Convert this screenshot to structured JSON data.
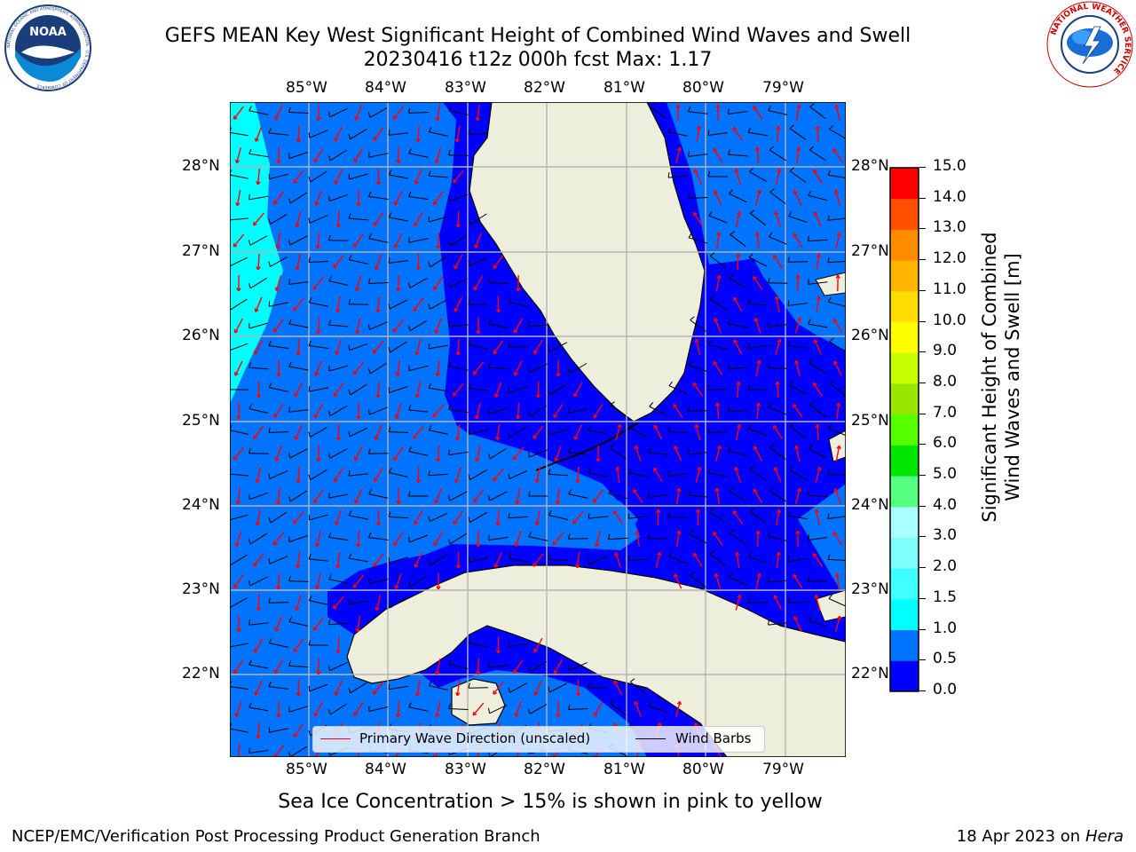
{
  "title": {
    "line1": "GEFS MEAN Key West Significant Height of Combined Wind Waves and Swell",
    "line2": "20230416 t12z 000h fcst   Max: 1.17"
  },
  "logos": {
    "noaa_text": "NOAA",
    "noaa_ring": "NATIONAL OCEANIC AND ATMOSPHERIC ADMINISTRATION · U.S. DEPARTMENT OF COMMERCE",
    "nws_ring": "NATIONAL WEATHER SERVICE"
  },
  "axes": {
    "lon_ticks": [
      "85°W",
      "84°W",
      "83°W",
      "82°W",
      "81°W",
      "80°W",
      "79°W"
    ],
    "lat_ticks": [
      "28°N",
      "27°N",
      "26°N",
      "25°N",
      "24°N",
      "23°N",
      "22°N"
    ]
  },
  "legend": {
    "wave_label": "Primary Wave Direction (unscaled)",
    "wind_label": "Wind Barbs",
    "wave_color": "#ff0000",
    "wind_color": "#000000"
  },
  "colorbar": {
    "label_line1": "Significant Height of Combined",
    "label_line2": "Wind Waves and Swell [m]",
    "ticks": [
      "0.0",
      "0.5",
      "1.0",
      "1.5",
      "2.0",
      "3.0",
      "4.0",
      "5.0",
      "6.0",
      "7.0",
      "8.0",
      "9.0",
      "10.0",
      "11.0",
      "12.0",
      "13.0",
      "14.0",
      "15.0"
    ],
    "colors": [
      "#0000ff",
      "#0073ff",
      "#00ffff",
      "#40ffff",
      "#80ffff",
      "#aaffff",
      "#55ff80",
      "#00e600",
      "#55ff00",
      "#99e600",
      "#c8ff00",
      "#ffff00",
      "#ffdd00",
      "#ffb400",
      "#ff8c00",
      "#ff5000",
      "#ff0000"
    ]
  },
  "note": "Sea Ice Concentration > 15% is shown in pink to yellow",
  "footer": {
    "left": "NCEP/EMC/Verification Post Processing Product Generation Branch",
    "date": "18 Apr 2023 on ",
    "machine": "Hera"
  },
  "map_colors": {
    "land": "#eeeedd",
    "sea_low": "#0000ff",
    "sea_mid": "#0073ff",
    "sea_high": "#00ffff",
    "grid": "#b4b4b4"
  }
}
